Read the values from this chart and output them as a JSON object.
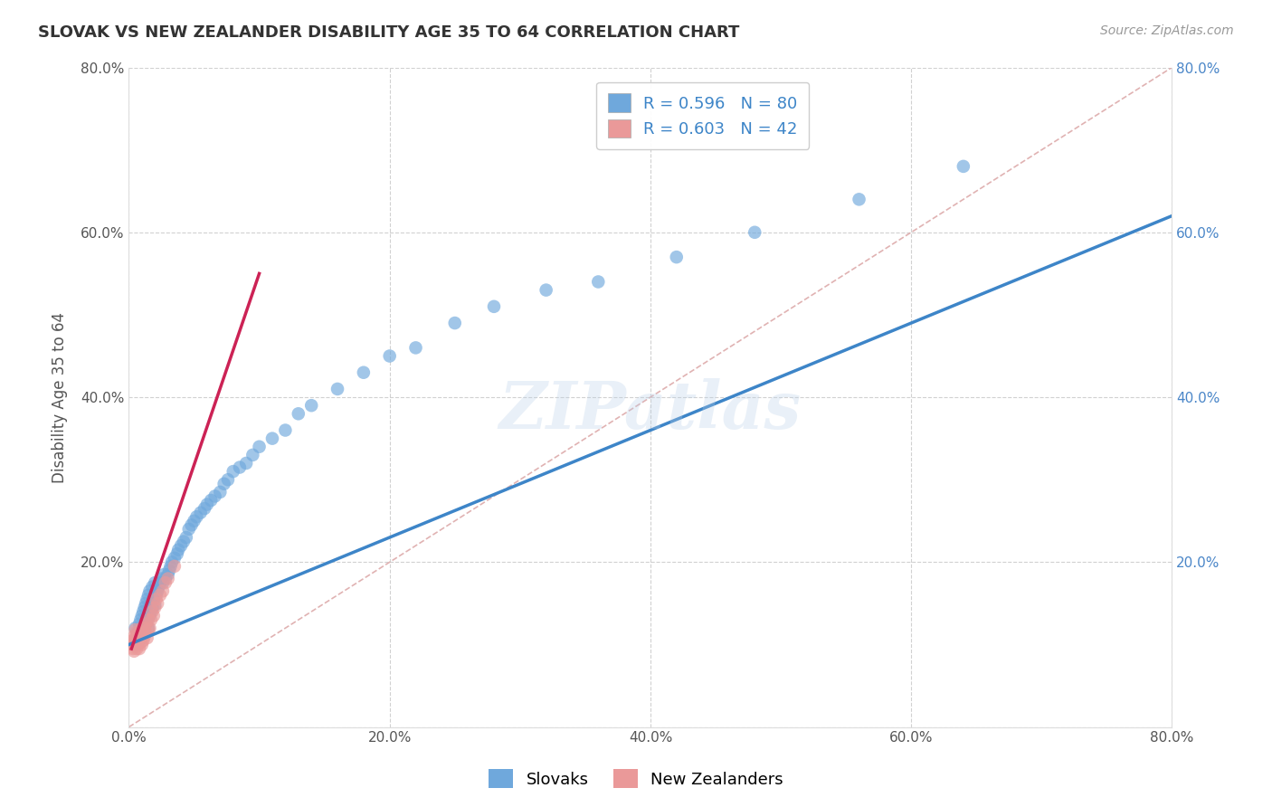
{
  "title": "SLOVAK VS NEW ZEALANDER DISABILITY AGE 35 TO 64 CORRELATION CHART",
  "source_text": "Source: ZipAtlas.com",
  "ylabel": "Disability Age 35 to 64",
  "xlim": [
    0.0,
    0.8
  ],
  "ylim": [
    0.0,
    0.8
  ],
  "xtick_labels": [
    "0.0%",
    "20.0%",
    "40.0%",
    "60.0%",
    "80.0%"
  ],
  "xtick_vals": [
    0.0,
    0.2,
    0.4,
    0.6,
    0.8
  ],
  "ytick_labels": [
    "",
    "20.0%",
    "40.0%",
    "60.0%",
    "80.0%"
  ],
  "ytick_vals": [
    0.0,
    0.2,
    0.4,
    0.6,
    0.8
  ],
  "right_ytick_labels": [
    "20.0%",
    "40.0%",
    "60.0%",
    "80.0%"
  ],
  "right_ytick_vals": [
    0.2,
    0.4,
    0.6,
    0.8
  ],
  "slovak_color": "#6fa8dc",
  "nz_color": "#ea9999",
  "slovak_line_color": "#3d85c8",
  "nz_line_color": "#cc2255",
  "diagonal_color": "#ddaaaa",
  "R_slovak": 0.596,
  "N_slovak": 80,
  "R_nz": 0.603,
  "N_nz": 42,
  "watermark": "ZIPatlas",
  "legend_entries": [
    "Slovaks",
    "New Zealanders"
  ],
  "slovak_scatter_x": [
    0.005,
    0.005,
    0.006,
    0.007,
    0.008,
    0.008,
    0.009,
    0.009,
    0.01,
    0.01,
    0.01,
    0.011,
    0.011,
    0.012,
    0.012,
    0.013,
    0.013,
    0.014,
    0.014,
    0.015,
    0.015,
    0.016,
    0.016,
    0.017,
    0.018,
    0.018,
    0.019,
    0.02,
    0.02,
    0.021,
    0.022,
    0.023,
    0.024,
    0.025,
    0.026,
    0.027,
    0.028,
    0.03,
    0.031,
    0.032,
    0.033,
    0.035,
    0.037,
    0.038,
    0.04,
    0.042,
    0.044,
    0.046,
    0.048,
    0.05,
    0.052,
    0.055,
    0.058,
    0.06,
    0.063,
    0.066,
    0.07,
    0.073,
    0.076,
    0.08,
    0.085,
    0.09,
    0.095,
    0.1,
    0.11,
    0.12,
    0.13,
    0.14,
    0.16,
    0.18,
    0.2,
    0.22,
    0.25,
    0.28,
    0.32,
    0.36,
    0.42,
    0.48,
    0.56,
    0.64
  ],
  "slovak_scatter_y": [
    0.1,
    0.12,
    0.11,
    0.115,
    0.105,
    0.125,
    0.108,
    0.13,
    0.112,
    0.118,
    0.135,
    0.122,
    0.14,
    0.115,
    0.145,
    0.125,
    0.15,
    0.13,
    0.155,
    0.12,
    0.16,
    0.135,
    0.165,
    0.14,
    0.145,
    0.17,
    0.155,
    0.148,
    0.175,
    0.16,
    0.165,
    0.17,
    0.175,
    0.18,
    0.175,
    0.185,
    0.18,
    0.185,
    0.19,
    0.195,
    0.2,
    0.205,
    0.21,
    0.215,
    0.22,
    0.225,
    0.23,
    0.24,
    0.245,
    0.25,
    0.255,
    0.26,
    0.265,
    0.27,
    0.275,
    0.28,
    0.285,
    0.295,
    0.3,
    0.31,
    0.315,
    0.32,
    0.33,
    0.34,
    0.35,
    0.36,
    0.38,
    0.39,
    0.41,
    0.43,
    0.45,
    0.46,
    0.49,
    0.51,
    0.53,
    0.54,
    0.57,
    0.6,
    0.64,
    0.68
  ],
  "nz_scatter_x": [
    0.002,
    0.003,
    0.003,
    0.004,
    0.004,
    0.004,
    0.005,
    0.005,
    0.005,
    0.006,
    0.006,
    0.006,
    0.007,
    0.007,
    0.008,
    0.008,
    0.009,
    0.009,
    0.01,
    0.01,
    0.01,
    0.011,
    0.011,
    0.012,
    0.012,
    0.013,
    0.013,
    0.014,
    0.015,
    0.015,
    0.016,
    0.017,
    0.018,
    0.019,
    0.02,
    0.021,
    0.022,
    0.024,
    0.026,
    0.028,
    0.03,
    0.035
  ],
  "nz_scatter_y": [
    0.1,
    0.095,
    0.105,
    0.092,
    0.1,
    0.11,
    0.098,
    0.108,
    0.118,
    0.095,
    0.105,
    0.115,
    0.1,
    0.112,
    0.095,
    0.108,
    0.102,
    0.115,
    0.1,
    0.11,
    0.12,
    0.105,
    0.115,
    0.11,
    0.12,
    0.115,
    0.125,
    0.108,
    0.118,
    0.13,
    0.12,
    0.13,
    0.14,
    0.135,
    0.145,
    0.155,
    0.15,
    0.16,
    0.165,
    0.175,
    0.18,
    0.195
  ],
  "slovak_line_x0": 0.0,
  "slovak_line_y0": 0.1,
  "slovak_line_x1": 0.8,
  "slovak_line_y1": 0.62,
  "nz_line_x0": 0.002,
  "nz_line_y0": 0.095,
  "nz_line_x1": 0.1,
  "nz_line_y1": 0.55
}
